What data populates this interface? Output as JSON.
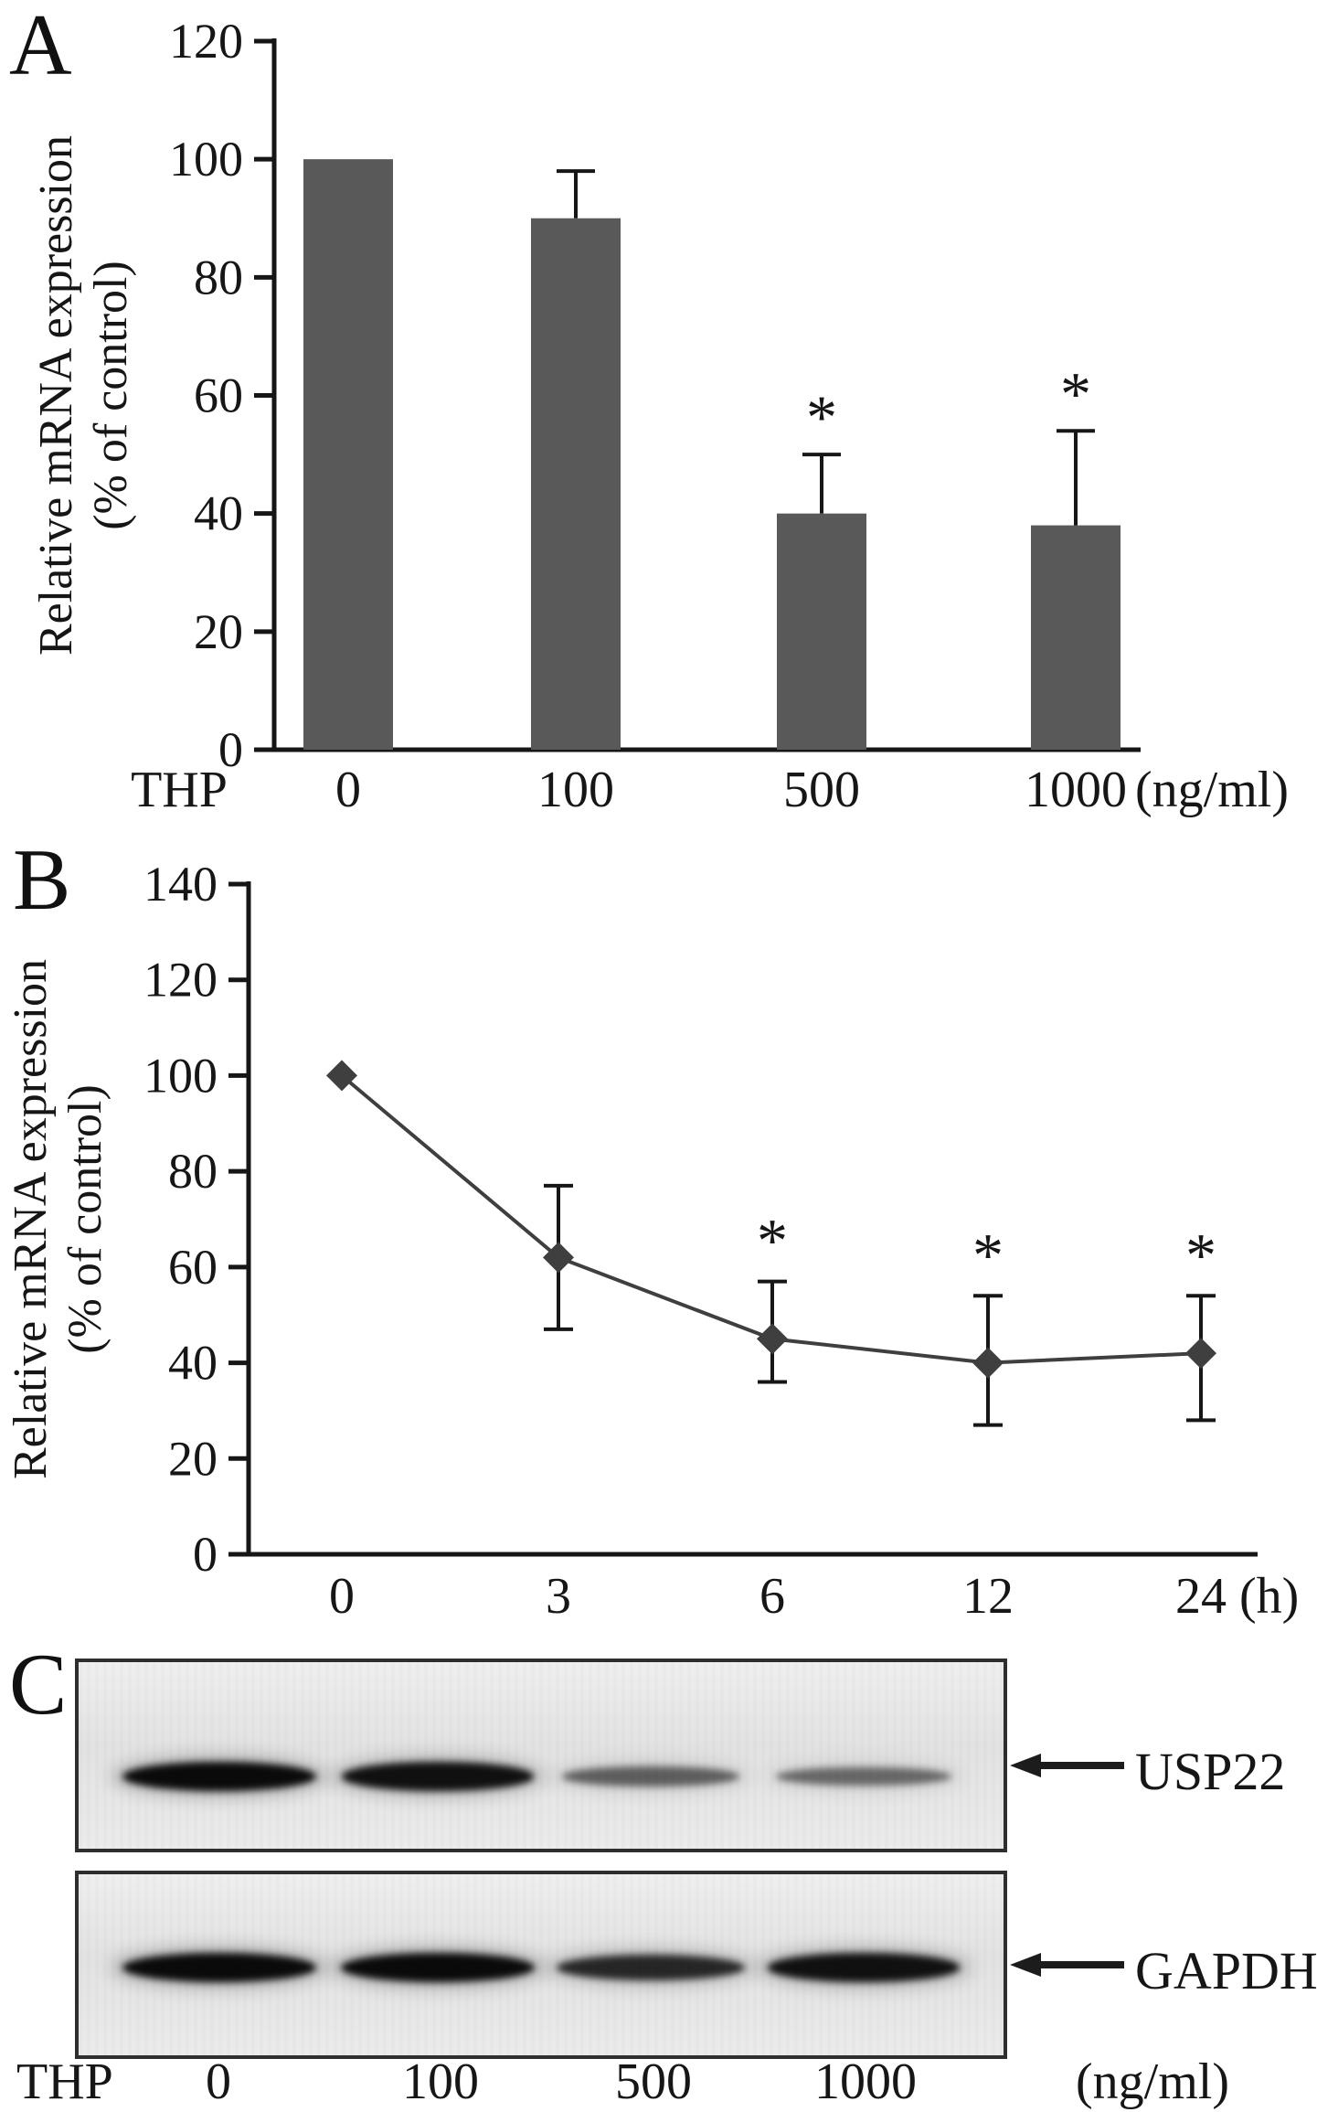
{
  "panels": {
    "a": "A",
    "b": "B",
    "c": "C"
  },
  "chart_data": [
    {
      "type": "bar",
      "panel": "A",
      "title": "",
      "ylabel_line1": "Relative mRNA expression",
      "ylabel_line2": "(% of control)",
      "x_prefix": "THP",
      "x_unit": "(ng/ml)",
      "categories": [
        "0",
        "100",
        "500",
        "1000"
      ],
      "values": [
        100,
        90,
        40,
        38
      ],
      "errors_up": [
        0,
        8,
        10,
        16
      ],
      "significance": [
        "",
        "",
        "*",
        "*"
      ],
      "ylim": [
        0,
        120
      ],
      "ytick_step": 20,
      "bar_color": "#595959",
      "axis_color": "#161616",
      "grid": false
    },
    {
      "type": "line",
      "panel": "B",
      "title": "",
      "ylabel_line1": "Relative mRNA expression",
      "ylabel_line2": "(% of control)",
      "x_unit": "(h)",
      "categories": [
        "0",
        "3",
        "6",
        "12",
        "24"
      ],
      "values": [
        100,
        62,
        45,
        40,
        42
      ],
      "errors_up": [
        0,
        15,
        12,
        14,
        12
      ],
      "errors_down": [
        0,
        15,
        9,
        13,
        14
      ],
      "significance": [
        "",
        "",
        "*",
        "*",
        "*"
      ],
      "ylim": [
        0,
        140
      ],
      "ytick_step": 20,
      "marker": "diamond",
      "line_color": "#3f3f3f",
      "axis_color": "#161616",
      "grid": false
    }
  ],
  "blot": {
    "panel": "C",
    "rows": [
      {
        "label": "USP22",
        "intensities": [
          1.0,
          0.95,
          0.45,
          0.4
        ]
      },
      {
        "label": "GAPDH",
        "intensities": [
          1.0,
          1.0,
          0.8,
          0.95
        ]
      }
    ],
    "x_prefix": "THP",
    "lane_labels": [
      "0",
      "100",
      "500",
      "1000"
    ],
    "x_unit": "(ng/ml)"
  }
}
